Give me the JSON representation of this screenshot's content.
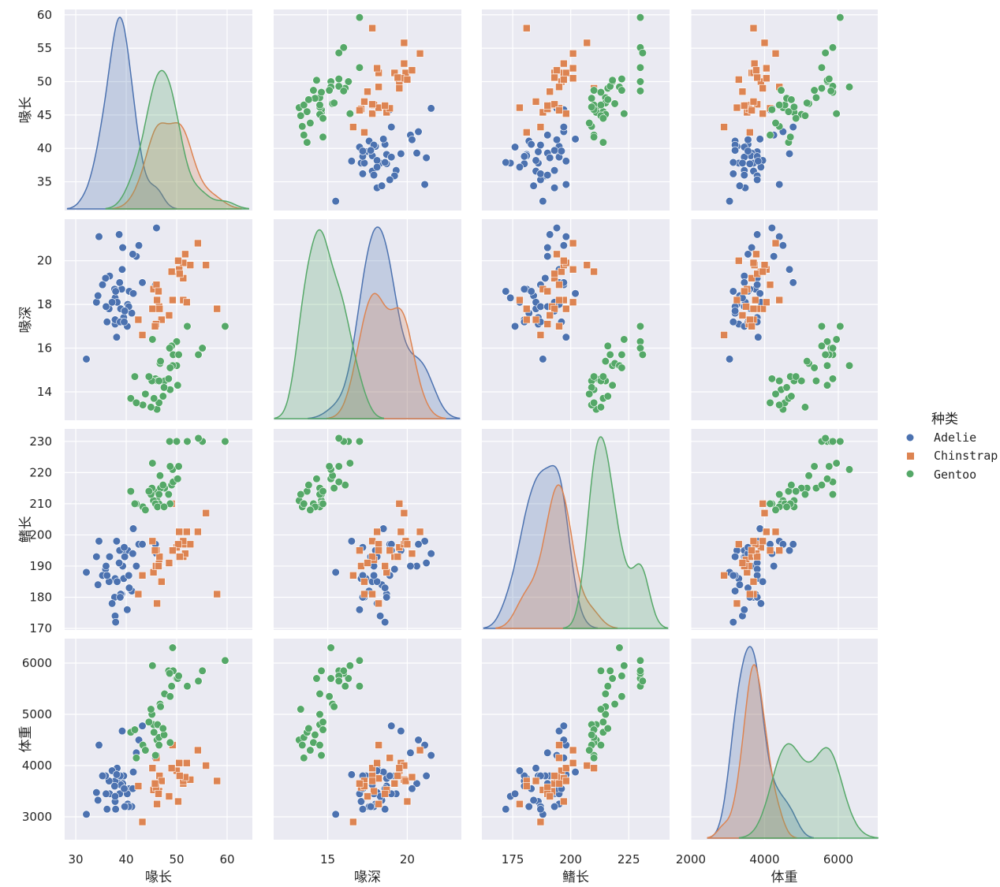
{
  "chart_data": {
    "type": "pairplot",
    "variables": [
      "喙长",
      "喙深",
      "鳍长",
      "体重"
    ],
    "axes": [
      {
        "label": "喙长",
        "range": [
          27.8,
          65
        ],
        "yrange": [
          30.7,
          60.8
        ],
        "ticks": [
          30,
          40,
          50,
          60
        ],
        "yticks": [
          35,
          40,
          45,
          50,
          55,
          60
        ]
      },
      {
        "label": "喙深",
        "range": [
          11.6,
          23.4
        ],
        "yrange": [
          12.7,
          21.9
        ],
        "ticks": [
          15,
          20
        ],
        "yticks": [
          14,
          16,
          18,
          20
        ]
      },
      {
        "label": "鳍长",
        "range": [
          161.7,
          242.6
        ],
        "yrange": [
          169.5,
          234
        ],
        "ticks": [
          175,
          200,
          225
        ],
        "yticks": [
          170,
          180,
          190,
          200,
          210,
          220,
          230
        ]
      },
      {
        "label": "体重",
        "range": [
          2000,
          7070
        ],
        "yrange": [
          2554,
          6477
        ],
        "ticks": [
          2000,
          4000,
          6000
        ],
        "yticks": [
          3000,
          4000,
          5000,
          6000
        ]
      }
    ],
    "diagonal": "kde",
    "offdiagonal": "scatter",
    "grid": true,
    "legend": {
      "title": "种类",
      "placement": "right"
    },
    "series": [
      {
        "name": "Adelie",
        "color": "#4c72b0",
        "marker": "circle",
        "points": [
          [
            39.1,
            18.7,
            181,
            3750
          ],
          [
            39.5,
            17.4,
            186,
            3800
          ],
          [
            40.3,
            18.0,
            195,
            3250
          ],
          [
            36.7,
            19.3,
            193,
            3450
          ],
          [
            39.3,
            20.6,
            190,
            3650
          ],
          [
            38.9,
            17.8,
            181,
            3625
          ],
          [
            39.2,
            19.6,
            195,
            4675
          ],
          [
            34.1,
            18.1,
            193,
            3475
          ],
          [
            42.0,
            20.2,
            190,
            4250
          ],
          [
            37.8,
            17.1,
            186,
            3300
          ],
          [
            37.8,
            17.3,
            180,
            3700
          ],
          [
            41.1,
            17.6,
            182,
            3200
          ],
          [
            38.6,
            21.2,
            191,
            3800
          ],
          [
            34.6,
            21.1,
            198,
            4400
          ],
          [
            36.6,
            17.8,
            185,
            3700
          ],
          [
            38.7,
            19.0,
            195,
            3450
          ],
          [
            42.5,
            20.7,
            197,
            4500
          ],
          [
            34.4,
            18.4,
            184,
            3325
          ],
          [
            46.0,
            21.5,
            194,
            4200
          ],
          [
            37.8,
            18.3,
            174,
            3400
          ],
          [
            37.7,
            18.7,
            180,
            3600
          ],
          [
            35.9,
            19.2,
            189,
            3800
          ],
          [
            38.2,
            18.1,
            185,
            3950
          ],
          [
            38.8,
            17.2,
            180,
            3800
          ],
          [
            35.3,
            18.9,
            187,
            3800
          ],
          [
            40.6,
            18.6,
            183,
            3550
          ],
          [
            40.5,
            17.9,
            187,
            3200
          ],
          [
            37.9,
            18.6,
            172,
            3150
          ],
          [
            32.1,
            15.5,
            188,
            3050
          ],
          [
            45.8,
            18.9,
            197,
            4150
          ],
          [
            36.2,
            17.2,
            187,
            3150
          ],
          [
            40.2,
            17.0,
            176,
            3450
          ],
          [
            41.4,
            18.5,
            202,
            3875
          ],
          [
            37.2,
            18.1,
            178,
            3900
          ],
          [
            39.7,
            17.7,
            193,
            3200
          ],
          [
            36.0,
            17.9,
            190,
            3450
          ],
          [
            41.3,
            20.3,
            194,
            3550
          ],
          [
            38.1,
            16.5,
            198,
            3825
          ],
          [
            39.6,
            17.2,
            196,
            3550
          ],
          [
            43.2,
            19.0,
            197,
            4775
          ]
        ]
      },
      {
        "name": "Chinstrap",
        "color": "#dd8452",
        "marker": "square",
        "points": [
          [
            46.5,
            17.9,
            192,
            3500
          ],
          [
            50.0,
            19.5,
            196,
            3900
          ],
          [
            51.3,
            19.2,
            193,
            3650
          ],
          [
            45.4,
            18.7,
            188,
            3525
          ],
          [
            52.7,
            19.8,
            197,
            3725
          ],
          [
            45.2,
            17.8,
            198,
            3950
          ],
          [
            46.1,
            18.2,
            178,
            3250
          ],
          [
            51.3,
            18.2,
            197,
            3750
          ],
          [
            46.0,
            18.9,
            195,
            4150
          ],
          [
            51.3,
            19.9,
            198,
            3700
          ],
          [
            46.6,
            17.8,
            193,
            3800
          ],
          [
            51.7,
            20.3,
            194,
            3775
          ],
          [
            47.0,
            17.3,
            185,
            3700
          ],
          [
            52.0,
            18.1,
            201,
            4050
          ],
          [
            45.9,
            17.1,
            190,
            3575
          ],
          [
            50.5,
            19.6,
            201,
            4050
          ],
          [
            50.3,
            20.0,
            197,
            3300
          ],
          [
            58.0,
            17.8,
            181,
            3700
          ],
          [
            46.4,
            18.6,
            190,
            3450
          ],
          [
            49.2,
            18.2,
            195,
            4400
          ],
          [
            42.4,
            17.3,
            181,
            3600
          ],
          [
            48.5,
            17.5,
            191,
            3400
          ],
          [
            43.2,
            16.6,
            187,
            2900
          ],
          [
            50.6,
            19.4,
            193,
            3800
          ],
          [
            55.8,
            19.8,
            207,
            4000
          ],
          [
            49.0,
            19.5,
            210,
            3950
          ],
          [
            45.7,
            17.0,
            195,
            3650
          ],
          [
            54.2,
            20.8,
            201,
            4300
          ]
        ]
      },
      {
        "name": "Gentoo",
        "color": "#55a868",
        "marker": "circle",
        "points": [
          [
            46.1,
            13.2,
            211,
            4500
          ],
          [
            50.0,
            16.3,
            230,
            5700
          ],
          [
            48.7,
            14.1,
            210,
            4450
          ],
          [
            50.0,
            15.2,
            218,
            5700
          ],
          [
            47.6,
            14.5,
            215,
            5400
          ],
          [
            46.5,
            13.5,
            210,
            4550
          ],
          [
            45.4,
            14.6,
            211,
            4800
          ],
          [
            46.7,
            15.3,
            219,
            5200
          ],
          [
            43.3,
            13.4,
            209,
            4400
          ],
          [
            46.8,
            15.4,
            215,
            5150
          ],
          [
            40.9,
            13.7,
            214,
            4650
          ],
          [
            49.0,
            16.1,
            216,
            5550
          ],
          [
            45.5,
            13.7,
            214,
            4650
          ],
          [
            48.4,
            14.6,
            213,
            5850
          ],
          [
            45.8,
            14.6,
            210,
            4200
          ],
          [
            49.3,
            15.7,
            217,
            5850
          ],
          [
            42.0,
            13.5,
            210,
            4150
          ],
          [
            49.2,
            15.2,
            221,
            6300
          ],
          [
            46.2,
            14.5,
            209,
            4800
          ],
          [
            48.7,
            15.1,
            222,
            5350
          ],
          [
            50.2,
            14.3,
            218,
            5700
          ],
          [
            45.1,
            14.5,
            215,
            5000
          ],
          [
            46.5,
            14.5,
            213,
            4400
          ],
          [
            59.6,
            17.0,
            230,
            6050
          ],
          [
            48.6,
            16.0,
            230,
            5800
          ],
          [
            44.9,
            13.3,
            213,
            5100
          ],
          [
            52.1,
            17.0,
            230,
            5550
          ],
          [
            55.1,
            16.0,
            230,
            5850
          ],
          [
            41.7,
            14.7,
            210,
            4700
          ],
          [
            50.4,
            15.7,
            222,
            5750
          ],
          [
            54.3,
            15.7,
            231,
            5650
          ],
          [
            47.5,
            14.2,
            209,
            4600
          ],
          [
            44.5,
            14.7,
            214,
            4850
          ],
          [
            47.3,
            13.8,
            216,
            4725
          ],
          [
            45.2,
            16.4,
            223,
            5950
          ],
          [
            43.8,
            13.9,
            208,
            4300
          ]
        ]
      }
    ]
  }
}
